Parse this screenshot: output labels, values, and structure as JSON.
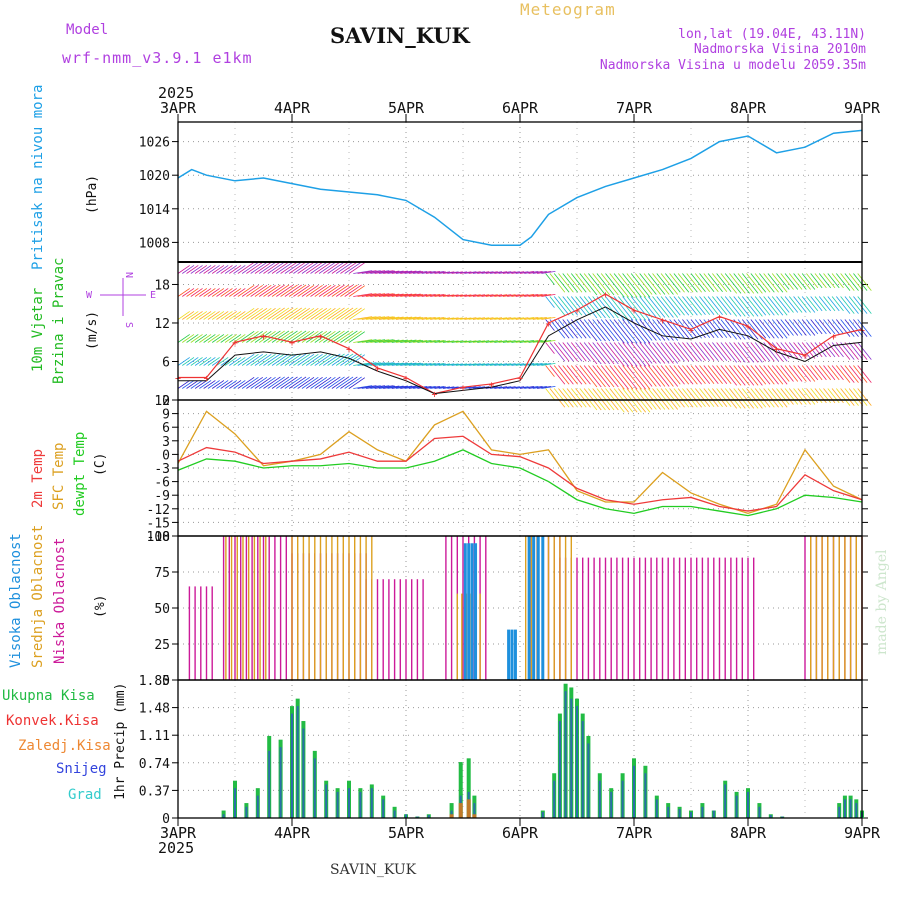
{
  "header": {
    "model_label": "Model",
    "model_name": "wrf-nmm_v3.9.1 e1km",
    "station": "SAVIN_KUK",
    "title": "Meteogram",
    "coords": "lon,lat (19.04E, 43.11N)",
    "elev_line": "Nadmorska Visina 2010m",
    "elev_model_line": "Nadmorska Visina u modelu 2059.35m",
    "year": "2025",
    "footer_station": "SAVIN_KUK",
    "watermark": "made by Angel"
  },
  "colors": {
    "pressure": "#1ea0e6",
    "wind_scale": "#22bb22",
    "temp2m": "#ee3a3a",
    "sfc_temp": "#dca020",
    "dewpt": "#22cc22",
    "cloud_high": "#1e90dd",
    "cloud_mid": "#dca020",
    "cloud_low": "#cc1a99",
    "rain": "#22bb44",
    "conv_rain": "#ee3333",
    "frz_rain": "#ee8833",
    "snow": "#3344dd",
    "hail": "#33cccc",
    "purple_text": "#b040e0"
  },
  "time_axis": {
    "tick_labels": [
      "3APR",
      "4APR",
      "5APR",
      "6APR",
      "7APR",
      "8APR",
      "9APR"
    ],
    "start": "3APR",
    "end": "9APR"
  },
  "chart_data": [
    {
      "type": "line",
      "panel": "pressure",
      "ylabel_lines": [
        "Pritisak na nivou mora"
      ],
      "unit": "(hPa)",
      "yticks": [
        1008,
        1014,
        1020,
        1026
      ],
      "ylim": [
        1004.5,
        1029.5
      ],
      "grid": true,
      "x_days": [
        0,
        0.12,
        0.25,
        0.5,
        0.75,
        1.0,
        1.25,
        1.5,
        1.75,
        2.0,
        2.25,
        2.5,
        2.75,
        3.0,
        3.1,
        3.25,
        3.5,
        3.75,
        4.0,
        4.25,
        4.5,
        4.75,
        5.0,
        5.25,
        5.5,
        5.75,
        6.0
      ],
      "series": [
        {
          "values": [
            1019.5,
            1021,
            1020,
            1019,
            1019.5,
            1018.5,
            1017.5,
            1017,
            1016.5,
            1015.5,
            1012.5,
            1008.5,
            1007.5,
            1007.5,
            1009,
            1013,
            1016,
            1018,
            1019.5,
            1021,
            1023,
            1026,
            1027,
            1024,
            1025,
            1027.5,
            1028
          ]
        }
      ]
    },
    {
      "type": "line",
      "panel": "wind",
      "ylabel_lines": [
        "10m Vjetar",
        "Brzina i Pravac"
      ],
      "unit": "(m/s)",
      "compass": [
        "N",
        "S",
        "W",
        "E"
      ],
      "yticks": [
        0,
        6,
        12,
        18
      ],
      "ylim": [
        0,
        21.5
      ],
      "grid": true,
      "x_days": [
        0,
        0.25,
        0.5,
        0.75,
        1.0,
        1.25,
        1.5,
        1.75,
        2.0,
        2.25,
        2.5,
        2.75,
        3.0,
        3.25,
        3.5,
        3.75,
        4.0,
        4.25,
        4.5,
        4.75,
        5.0,
        5.25,
        5.5,
        5.75,
        6.0
      ],
      "series": [
        {
          "name": "gust",
          "values": [
            3.5,
            3.5,
            9,
            10,
            9,
            10,
            8,
            5,
            3.5,
            1,
            2,
            2.5,
            3.5,
            12,
            14,
            16.5,
            14,
            12.5,
            11,
            13,
            11.5,
            8,
            7,
            10,
            11
          ]
        },
        {
          "name": "speed",
          "values": [
            3,
            3,
            7,
            7.5,
            7,
            7.5,
            6.5,
            4.5,
            3,
            1,
            1.5,
            2,
            3,
            10,
            12.5,
            14.5,
            12,
            10,
            9.5,
            11,
            10,
            7.5,
            6,
            8.5,
            9
          ]
        }
      ]
    },
    {
      "type": "line",
      "panel": "temperature",
      "ylabel_lines": [
        "2m Temp",
        "SFC Temp",
        "dewpt Temp"
      ],
      "unit": "(C)",
      "yticks": [
        -18,
        -15,
        -12,
        -9,
        -6,
        -3,
        0,
        3,
        6,
        9,
        12
      ],
      "ylim": [
        -18,
        12
      ],
      "grid": true,
      "x_days": [
        0,
        0.25,
        0.5,
        0.75,
        1.0,
        1.25,
        1.5,
        1.75,
        2.0,
        2.25,
        2.5,
        2.75,
        3.0,
        3.25,
        3.5,
        3.75,
        4.0,
        4.25,
        4.5,
        4.75,
        5.0,
        5.25,
        5.5,
        5.75,
        6.0
      ],
      "series": [
        {
          "name": "2m Temp",
          "values": [
            -1.5,
            1.5,
            0.5,
            -2,
            -1.5,
            -1,
            0.5,
            -1.5,
            -1.5,
            3.5,
            4,
            0,
            -0.5,
            -3,
            -7.5,
            -10,
            -11,
            -10,
            -9.5,
            -11.5,
            -12.5,
            -11.5,
            -4.5,
            -8,
            -10
          ]
        },
        {
          "name": "SFC Temp",
          "values": [
            -2,
            9.5,
            4.5,
            -2.5,
            -1.5,
            0,
            5,
            1,
            -1.5,
            6.5,
            9.5,
            1,
            0,
            1,
            -8,
            -10.5,
            -10.5,
            -4,
            -8.5,
            -11,
            -13,
            -11,
            1,
            -7,
            -10
          ]
        },
        {
          "name": "dewpt Temp",
          "values": [
            -3.5,
            -1,
            -1.5,
            -3,
            -2.5,
            -2.5,
            -2,
            -3,
            -3,
            -1.5,
            1,
            -2,
            -3,
            -6,
            -10,
            -12,
            -13,
            -11.5,
            -11.5,
            -12.5,
            -13.5,
            -12,
            -9,
            -9.5,
            -10.5
          ]
        }
      ]
    },
    {
      "type": "bar",
      "panel": "clouds",
      "ylabel_lines": [
        "Visoka Oblacnost",
        "Srednja Oblacnost",
        "Niska Oblacnost"
      ],
      "unit": "(%)",
      "yticks": [
        0,
        25,
        50,
        75,
        100
      ],
      "ylim": [
        0,
        100
      ],
      "grid": true,
      "series": [
        {
          "name": "Niska Oblacnost",
          "segments": [
            {
              "x0": 0.1,
              "x1": 0.3,
              "step": 0.05,
              "value": 65
            },
            {
              "x0": 0.4,
              "x1": 1.0,
              "step": 0.05,
              "value": 100
            },
            {
              "x0": 1.0,
              "x1": 1.65,
              "step": 0.05,
              "value": 88
            },
            {
              "x0": 1.65,
              "x1": 2.15,
              "step": 0.05,
              "value": 70
            },
            {
              "x0": 2.35,
              "x1": 2.7,
              "step": 0.05,
              "value": 100
            },
            {
              "x0": 3.1,
              "x1": 3.35,
              "step": 0.05,
              "value": 100
            },
            {
              "x0": 3.35,
              "x1": 5.05,
              "step": 0.05,
              "value": 85
            },
            {
              "x0": 5.5,
              "x1": 6.0,
              "step": 0.05,
              "value": 100
            }
          ]
        },
        {
          "name": "Srednja Oblacnost",
          "segments": [
            {
              "x0": 0.42,
              "x1": 0.8,
              "step": 0.05,
              "value": 100
            },
            {
              "x0": 1.0,
              "x1": 1.72,
              "step": 0.05,
              "value": 100
            },
            {
              "x0": 2.45,
              "x1": 2.65,
              "step": 0.04,
              "value": 60
            },
            {
              "x0": 3.05,
              "x1": 3.45,
              "step": 0.05,
              "value": 100
            },
            {
              "x0": 5.55,
              "x1": 6.0,
              "step": 0.05,
              "value": 100
            }
          ]
        },
        {
          "name": "Visoka Oblacnost",
          "segments": [
            {
              "x0": 2.52,
              "x1": 2.62,
              "step": 0.03,
              "value": 95
            },
            {
              "x0": 2.9,
              "x1": 2.96,
              "step": 0.03,
              "value": 35
            },
            {
              "x0": 3.08,
              "x1": 3.2,
              "step": 0.04,
              "value": 100
            }
          ]
        }
      ]
    },
    {
      "type": "bar",
      "panel": "precip",
      "ylabel_lines": [
        "Ukupna Kisa",
        "Konvek.Kisa",
        "Zaledj.Kisa",
        "Snijeg",
        "Grad"
      ],
      "unit": "1hr Precip (mm)",
      "yticks": [
        0,
        0.37,
        0.74,
        1.11,
        1.48,
        1.85
      ],
      "ylim": [
        0,
        1.85
      ],
      "grid": true,
      "x_days": [
        0.4,
        0.5,
        0.6,
        0.7,
        0.8,
        0.9,
        1.0,
        1.05,
        1.1,
        1.2,
        1.3,
        1.4,
        1.5,
        1.6,
        1.7,
        1.8,
        1.9,
        2.0,
        2.1,
        2.2,
        2.4,
        2.48,
        2.55,
        2.6,
        3.2,
        3.3,
        3.35,
        3.4,
        3.45,
        3.5,
        3.55,
        3.6,
        3.7,
        3.8,
        3.9,
        4.0,
        4.1,
        4.2,
        4.3,
        4.4,
        4.5,
        4.6,
        4.7,
        4.8,
        4.9,
        5.0,
        5.1,
        5.2,
        5.3,
        5.8,
        5.85,
        5.9,
        5.95,
        6.0
      ],
      "series": [
        {
          "name": "Ukupna Kisa",
          "values": [
            0.1,
            0.5,
            0.2,
            0.4,
            1.1,
            1.05,
            1.5,
            1.6,
            1.3,
            0.9,
            0.5,
            0.4,
            0.5,
            0.4,
            0.45,
            0.3,
            0.15,
            0.05,
            0.02,
            0.05,
            0.2,
            0.75,
            0.8,
            0.3,
            0.1,
            0.6,
            1.4,
            1.8,
            1.75,
            1.6,
            1.4,
            1.1,
            0.6,
            0.4,
            0.6,
            0.8,
            0.7,
            0.3,
            0.2,
            0.15,
            0.1,
            0.2,
            0.1,
            0.5,
            0.35,
            0.4,
            0.2,
            0.05,
            0.02,
            0.2,
            0.3,
            0.3,
            0.25,
            0.1
          ]
        },
        {
          "name": "Snijeg",
          "values": [
            0.05,
            0.4,
            0.15,
            0.3,
            0.9,
            0.95,
            1.4,
            1.5,
            1.2,
            0.8,
            0.45,
            0.35,
            0.4,
            0.35,
            0.4,
            0.25,
            0.1,
            0.05,
            0.02,
            0.04,
            0.1,
            0.3,
            0.35,
            0.2,
            0.08,
            0.5,
            1.3,
            1.7,
            1.6,
            1.5,
            1.3,
            1.0,
            0.5,
            0.35,
            0.5,
            0.7,
            0.6,
            0.25,
            0.15,
            0.12,
            0.08,
            0.15,
            0.1,
            0.45,
            0.3,
            0.35,
            0.15,
            0.04,
            0.02,
            0.15,
            0.25,
            0.25,
            0.2,
            0.08
          ]
        },
        {
          "name": "Konvek.Kisa",
          "values": [
            0,
            0,
            0,
            0,
            0,
            0,
            0,
            0,
            0,
            0,
            0,
            0,
            0,
            0,
            0,
            0,
            0,
            0,
            0,
            0,
            0.05,
            0.2,
            0.25,
            0.05,
            0,
            0,
            0,
            0,
            0,
            0,
            0,
            0,
            0,
            0,
            0,
            0,
            0,
            0,
            0,
            0,
            0,
            0,
            0,
            0,
            0,
            0,
            0,
            0,
            0,
            0,
            0,
            0,
            0,
            0
          ]
        }
      ]
    }
  ],
  "side_labels": {
    "pressure": "Pritisak na nivou mora",
    "pressure_unit": "(hPa)",
    "wind1": "10m Vjetar",
    "wind2": "Brzina i Pravac",
    "wind_unit": "(m/s)",
    "t1": "2m Temp",
    "t2": "SFC Temp",
    "t3": "dewpt Temp",
    "t_unit": "(C)",
    "c1": "Visoka Oblacnost",
    "c2": "Srednja Oblacnost",
    "c3": "Niska Oblacnost",
    "c_unit": "(%)",
    "p1": "Ukupna Kisa",
    "p2": "Konvek.Kisa",
    "p3": "Zaledj.Kisa",
    "p4": "Snijeg",
    "p5": "Grad",
    "p_unit": "1hr Precip (mm)",
    "compass_n": "N",
    "compass_s": "S",
    "compass_w": "W",
    "compass_e": "E"
  }
}
